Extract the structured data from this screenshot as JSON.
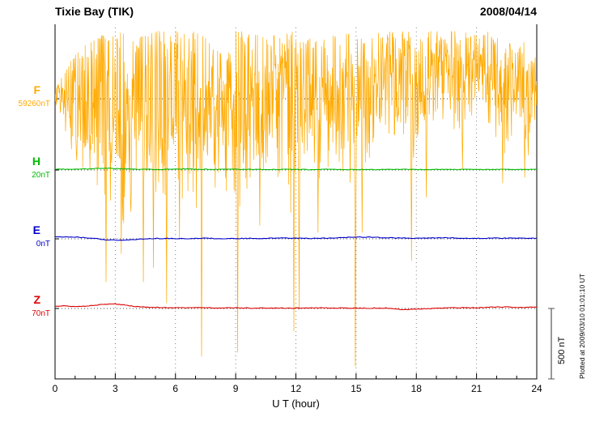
{
  "chart_data": {
    "type": "line",
    "title": "Tixie Bay (TIK)",
    "date": "2008/04/14",
    "xlabel": "U T (hour)",
    "x_min": 0,
    "x_max": 24,
    "x_major_ticks": [
      0,
      3,
      6,
      9,
      12,
      15,
      18,
      21,
      24
    ],
    "x_grid_hours": [
      3,
      6,
      9,
      12,
      15,
      18,
      21
    ],
    "scale_bar": {
      "label": "500 nT",
      "nT": 500
    },
    "plotted_note": "Plotted at 2009/03/10 01:01:10 UT",
    "sample_step_hours": 0.5,
    "units": "nT relative to each channel dotted baseline",
    "series": [
      {
        "name": "F",
        "baseline_label": "59260nT",
        "color": "#FFAA00",
        "type": "noise_envelope",
        "envelope_upper": [
          60,
          200,
          320,
          380,
          430,
          460,
          470,
          470,
          460,
          470,
          480,
          480,
          480,
          470,
          480,
          430,
          350,
          300,
          480,
          480,
          460,
          430,
          470,
          480,
          480,
          450,
          430,
          420,
          460,
          470,
          440,
          430,
          470,
          480,
          480,
          480,
          480,
          480,
          480,
          480,
          480,
          480,
          480,
          480,
          440,
          420,
          350,
          420,
          300
        ],
        "envelope_lower": [
          -60,
          -250,
          -500,
          -650,
          -800,
          -900,
          -850,
          -900,
          -950,
          -900,
          -800,
          -900,
          -700,
          -750,
          -800,
          -750,
          -700,
          -650,
          -800,
          -800,
          -600,
          -550,
          -650,
          -800,
          -900,
          -800,
          -600,
          -500,
          -650,
          -750,
          -650,
          -550,
          -350,
          -280,
          -300,
          -400,
          -450,
          -400,
          -180,
          -150,
          -300,
          -250,
          -130,
          -220,
          -400,
          -450,
          -220,
          -450,
          -180
        ],
        "spikes": [
          [
            2.55,
            -1300
          ],
          [
            3.3,
            -1100
          ],
          [
            4.4,
            -1300
          ],
          [
            4.9,
            -1200
          ],
          [
            5.55,
            -1450
          ],
          [
            6.2,
            -1000
          ],
          [
            7.3,
            -1830
          ],
          [
            9.1,
            -1800
          ],
          [
            10.2,
            -900
          ],
          [
            11.9,
            -1650
          ],
          [
            12.15,
            -1500
          ],
          [
            13.1,
            -950
          ],
          [
            14.95,
            -1900
          ],
          [
            15.3,
            -950
          ],
          [
            17.75,
            -1150
          ],
          [
            18.5,
            -700
          ],
          [
            20.3,
            -500
          ],
          [
            22.3,
            -600
          ],
          [
            23.4,
            -560
          ]
        ]
      },
      {
        "name": "H",
        "baseline_label": "20nT",
        "color": "#00BB00",
        "type": "line",
        "values": [
          8,
          6,
          5,
          8,
          10,
          12,
          10,
          8,
          6,
          5,
          4,
          5,
          6,
          8,
          6,
          5,
          4,
          5,
          6,
          5,
          4,
          3,
          4,
          5,
          4,
          3,
          4,
          5,
          4,
          3,
          4,
          4,
          3,
          4,
          5,
          4,
          3,
          4,
          4,
          3,
          4,
          5,
          4,
          3,
          4,
          4,
          3,
          4,
          4
        ]
      },
      {
        "name": "E",
        "baseline_label": "0nT",
        "color": "#0000CC",
        "type": "line",
        "values": [
          15,
          14,
          12,
          8,
          2,
          -6,
          -10,
          -8,
          -4,
          0,
          3,
          3,
          2,
          2,
          3,
          4,
          3,
          2,
          2,
          3,
          3,
          4,
          5,
          5,
          4,
          3,
          3,
          5,
          8,
          10,
          12,
          12,
          10,
          8,
          6,
          5,
          5,
          6,
          8,
          8,
          6,
          5,
          4,
          4,
          5,
          5,
          5,
          5,
          5
        ]
      },
      {
        "name": "Z",
        "baseline_label": "70nT",
        "color": "#DD0000",
        "type": "line",
        "values": [
          18,
          17,
          15,
          16,
          22,
          30,
          32,
          24,
          15,
          10,
          8,
          6,
          4,
          4,
          5,
          5,
          5,
          4,
          4,
          3,
          3,
          3,
          2,
          2,
          3,
          3,
          4,
          4,
          3,
          3,
          2,
          2,
          2,
          3,
          -4,
          -8,
          -5,
          -2,
          0,
          3,
          5,
          5,
          6,
          8,
          10,
          10,
          8,
          8,
          8
        ]
      }
    ]
  }
}
